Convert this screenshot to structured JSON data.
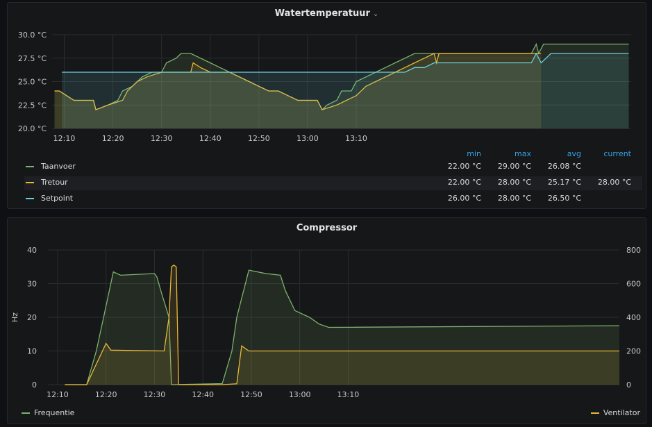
{
  "panels": {
    "water": {
      "title": "Watertemperatuur",
      "menu_icon": "chevron-down-icon"
    },
    "compressor": {
      "title": "Compressor"
    }
  },
  "colors": {
    "green": "#7eb26d",
    "orange": "#eab839",
    "blue": "#6ed0e0",
    "grid": "#2b2d31",
    "legend_head": "#33a2e5"
  },
  "chart_data": [
    {
      "type": "line",
      "title": "Watertemperatuur",
      "x_ticks": [
        "12:10",
        "12:20",
        "12:30",
        "12:40",
        "12:50",
        "13:00",
        "13:10"
      ],
      "y_ticks": [
        "20.0 °C",
        "22.5 °C",
        "25.0 °C",
        "27.5 °C",
        "30.0 °C"
      ],
      "ylim": [
        20,
        30
      ],
      "x_unit": "minutes after 12:00",
      "xlim": [
        7.5,
        126.5
      ],
      "legend": {
        "headers": [
          "min",
          "max",
          "avg",
          "current"
        ],
        "rows": [
          {
            "name": "Taanvoer",
            "color": "#7eb26d",
            "min": "22.00 °C",
            "max": "29.00 °C",
            "avg": "26.08 °C",
            "current": ""
          },
          {
            "name": "Tretour",
            "color": "#eab839",
            "min": "22.00 °C",
            "max": "28.00 °C",
            "avg": "25.17 °C",
            "current": "28.00 °C"
          },
          {
            "name": "Setpoint",
            "color": "#6ed0e0",
            "min": "26.00 °C",
            "max": "28.00 °C",
            "avg": "26.50 °C",
            "current": ""
          }
        ]
      },
      "series": [
        {
          "name": "Taanvoer",
          "color": "#7eb26d",
          "points": [
            [
              8,
              24
            ],
            [
              9,
              24
            ],
            [
              10.5,
              23.5
            ],
            [
              12,
              23
            ],
            [
              14,
              23
            ],
            [
              16,
              23
            ],
            [
              16.5,
              22
            ],
            [
              19,
              22.5
            ],
            [
              21,
              23
            ],
            [
              22,
              24
            ],
            [
              24,
              24.5
            ],
            [
              25,
              25
            ],
            [
              26,
              25.5
            ],
            [
              28,
              26
            ],
            [
              30,
              26
            ],
            [
              31,
              27
            ],
            [
              33,
              27.5
            ],
            [
              34,
              28
            ],
            [
              36,
              28
            ],
            [
              38,
              27.5
            ],
            [
              40,
              27
            ],
            [
              42,
              26.5
            ],
            [
              44,
              26
            ],
            [
              46,
              25.5
            ],
            [
              48,
              25
            ],
            [
              50,
              24.5
            ],
            [
              52,
              24
            ],
            [
              54,
              24
            ],
            [
              56,
              23.5
            ],
            [
              58,
              23
            ],
            [
              60,
              23
            ],
            [
              62,
              23
            ],
            [
              63,
              22
            ],
            [
              64,
              22.5
            ],
            [
              66,
              23
            ],
            [
              67,
              24
            ],
            [
              69,
              24
            ],
            [
              70,
              25
            ],
            [
              72,
              25.5
            ],
            [
              74,
              26
            ],
            [
              76,
              26.5
            ],
            [
              78,
              27
            ],
            [
              80,
              27.5
            ],
            [
              82,
              28
            ],
            [
              85,
              28
            ],
            [
              87,
              28
            ],
            [
              100,
              28
            ],
            [
              106,
              28
            ],
            [
              107,
              29
            ],
            [
              107.5,
              28
            ],
            [
              108.5,
              29
            ],
            [
              126,
              29
            ]
          ]
        },
        {
          "name": "Tretour",
          "color": "#eab839",
          "points": [
            [
              8,
              24
            ],
            [
              9,
              24
            ],
            [
              10.5,
              23.5
            ],
            [
              12,
              23
            ],
            [
              14,
              23
            ],
            [
              16,
              23
            ],
            [
              16.5,
              22
            ],
            [
              19,
              22.5
            ],
            [
              22,
              23
            ],
            [
              23,
              24
            ],
            [
              25,
              25
            ],
            [
              27,
              25.5
            ],
            [
              30,
              26
            ],
            [
              32,
              26
            ],
            [
              36,
              26
            ],
            [
              36.5,
              27
            ],
            [
              38,
              26.5
            ],
            [
              40,
              26
            ],
            [
              42,
              26
            ],
            [
              44,
              26
            ],
            [
              46,
              25.5
            ],
            [
              48,
              25
            ],
            [
              50,
              24.5
            ],
            [
              52,
              24
            ],
            [
              54,
              24
            ],
            [
              56,
              23.5
            ],
            [
              58,
              23
            ],
            [
              60,
              23
            ],
            [
              62,
              23
            ],
            [
              63,
              22
            ],
            [
              66,
              22.5
            ],
            [
              68,
              23
            ],
            [
              70,
              23.5
            ],
            [
              72,
              24.5
            ],
            [
              74,
              25
            ],
            [
              76,
              25.5
            ],
            [
              78,
              26
            ],
            [
              80,
              26.5
            ],
            [
              82,
              27
            ],
            [
              84,
              27.5
            ],
            [
              86,
              28
            ],
            [
              86.5,
              27
            ],
            [
              87,
              28
            ],
            [
              106,
              28
            ],
            [
              107,
              28
            ],
            [
              108,
              28
            ]
          ]
        },
        {
          "name": "Setpoint",
          "color": "#6ed0e0",
          "points": [
            [
              9.5,
              26
            ],
            [
              80,
              26
            ],
            [
              82,
              26.5
            ],
            [
              84,
              26.5
            ],
            [
              86,
              27
            ],
            [
              88,
              27
            ],
            [
              106,
              27
            ],
            [
              107,
              28
            ],
            [
              108,
              27
            ],
            [
              109,
              27.5
            ],
            [
              110,
              28
            ],
            [
              126,
              28
            ]
          ]
        }
      ]
    },
    {
      "type": "line",
      "title": "Compressor",
      "ylabel": "Hz",
      "x_ticks": [
        "12:10",
        "12:20",
        "12:30",
        "12:40",
        "12:50",
        "13:00",
        "13:10"
      ],
      "y_left_ticks": [
        "0",
        "10",
        "20",
        "30",
        "40"
      ],
      "y_right_ticks": [
        "0",
        "200",
        "400",
        "600",
        "800"
      ],
      "ylim_left": [
        0,
        40
      ],
      "ylim_right": [
        0,
        800
      ],
      "x_unit": "minutes after 12:00",
      "xlim": [
        8,
        126
      ],
      "series": [
        {
          "name": "Frequentie",
          "axis": "left",
          "color": "#7eb26d",
          "points": [
            [
              11.5,
              0
            ],
            [
              16,
              0
            ],
            [
              18,
              10
            ],
            [
              19.5,
              20
            ],
            [
              21.5,
              33.5
            ],
            [
              23,
              32.5
            ],
            [
              30,
              33
            ],
            [
              30.5,
              32
            ],
            [
              31.5,
              27
            ],
            [
              33,
              20
            ],
            [
              33.5,
              0
            ],
            [
              44,
              0.3
            ],
            [
              46,
              10
            ],
            [
              47,
              20
            ],
            [
              49.5,
              34
            ],
            [
              53,
              33
            ],
            [
              56,
              32.5
            ],
            [
              57,
              28
            ],
            [
              59,
              22
            ],
            [
              62,
              20
            ],
            [
              64,
              18
            ],
            [
              66,
              17
            ],
            [
              126,
              17.5
            ]
          ]
        },
        {
          "name": "Ventilator",
          "axis": "right",
          "color": "#eab839",
          "points": [
            [
              11.5,
              0
            ],
            [
              16,
              0
            ],
            [
              20,
              245
            ],
            [
              21,
              205
            ],
            [
              32,
              200
            ],
            [
              33,
              400
            ],
            [
              33.5,
              700
            ],
            [
              34,
              710
            ],
            [
              34.5,
              700
            ],
            [
              35,
              0
            ],
            [
              44,
              0
            ],
            [
              47,
              5
            ],
            [
              48,
              230
            ],
            [
              49.5,
              200
            ],
            [
              126,
              200
            ]
          ]
        }
      ]
    }
  ]
}
